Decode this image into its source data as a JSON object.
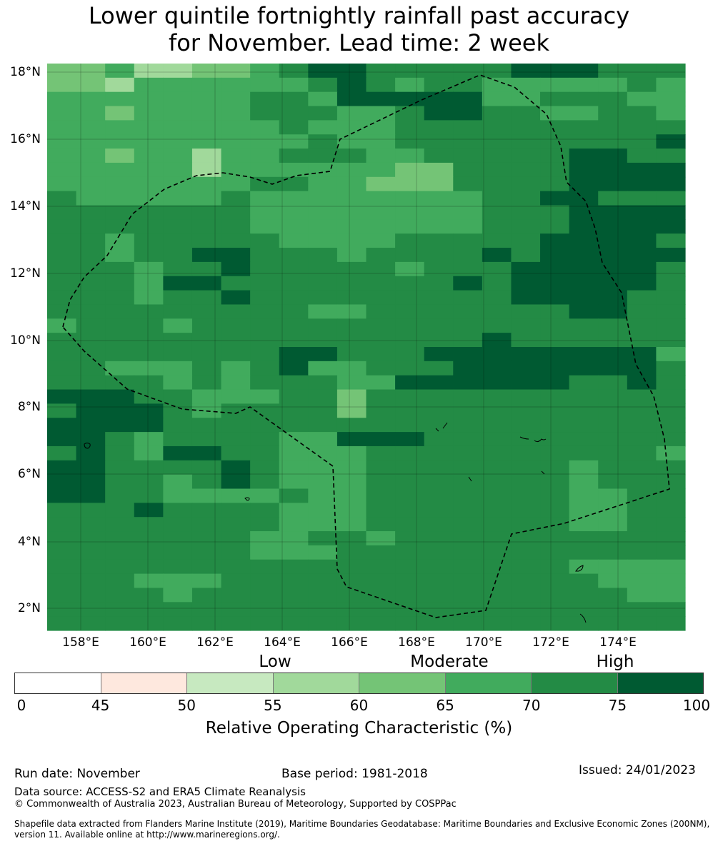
{
  "title": {
    "line1": "Lower quintile fortnightly rainfall past accuracy",
    "line2": "for November. Lead time: 2 week"
  },
  "map": {
    "lat_labels": [
      "18°N",
      "16°N",
      "14°N",
      "12°N",
      "10°N",
      "8°N",
      "6°N",
      "4°N",
      "2°N"
    ],
    "lon_labels": [
      "158°E",
      "160°E",
      "162°E",
      "164°E",
      "166°E",
      "168°E",
      "170°E",
      "172°E",
      "174°E"
    ],
    "boundary_line": "dashed",
    "colors_by_class": [
      "#ffffff",
      "#fee8de",
      "#c7e9c0",
      "#a1d99b",
      "#74c476",
      "#41ab5d",
      "#238b45",
      "#005a32"
    ],
    "grid_classes": [
      "4453344567766666777666",
      "4435555556765665555565",
      "5555555665777775566655",
      "5545555666556776655665",
      "5555555565556666666666",
      "5555555556556666666667",
      "5545535566655666667766",
      "5555535555554466667777",
      "5555555665544466667777",
      "6555556555555556677666",
      "6666666555555556667777",
      "6666666555555556667777",
      "6656666655556666677776",
      "6656677666566667677777",
      "6665667666665666777776",
      "6665776666666676777776",
      "6665667666666666777766",
      "6666666665566666667766",
      "5666566666666666666666",
      "6666666666666667666666",
      "6666666677666777777775",
      "6655565675566677777776",
      "6666565666557777776676",
      "7776655566466666666666",
      "6777656666466666666666",
      "7777666666666666666666",
      "7765666655777666666666",
      "6765776655566666666665",
      "7766667655566666665666",
      "7766567655566666665666",
      "7766555565566666665566",
      "6667666655566666665566",
      "6666666655566666665566",
      "6666666556656666666666",
      "6666666555666666666666",
      "6666666666666666665555",
      "6665556666666666666555",
      "6666566666666666666655",
      "6666666666666666666666",
      "6666666666666666666666"
    ],
    "grid_legend": "rows run north to south, columns run west to east; digit = colour class index into colors_by_class"
  },
  "categories": {
    "low": "Low",
    "moderate": "Moderate",
    "high": "High"
  },
  "colorbar": {
    "colors": [
      "#ffffff",
      "#fee8de",
      "#c7e9c0",
      "#a1d99b",
      "#74c476",
      "#41ab5d",
      "#238b45",
      "#005a32"
    ],
    "ticks": [
      "0",
      "45",
      "50",
      "55",
      "60",
      "65",
      "70",
      "75",
      "100"
    ],
    "label": "Relative Operating Characteristic (%)"
  },
  "footer": {
    "run_date": "Run date: November",
    "base_period": "Base period: 1981-2018",
    "issued": "Issued: 24/01/2023",
    "data_source": "Data source: ACCESS-S2 and ERA5 Climate Reanalysis",
    "copyright": "© Commonwealth of Australia 2023, Australian Bureau of Meteorology, Supported by COSPPac",
    "shapefile_line1": "Shapefile data extracted from Flanders Marine Institute (2019), Maritime Boundaries Geodatabase: Maritime Boundaries and Exclusive Economic Zones (200NM),",
    "shapefile_line2": "version 11. Available online at http://www.marineregions.org/."
  }
}
